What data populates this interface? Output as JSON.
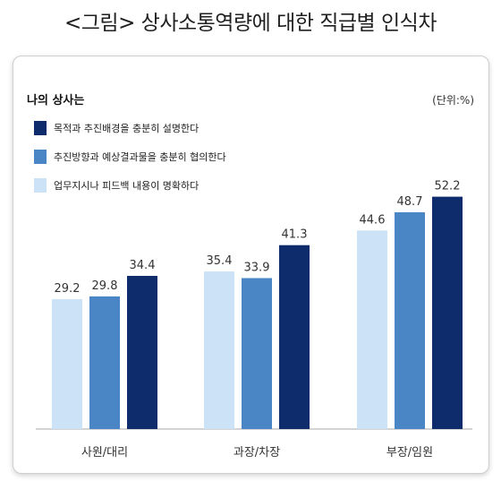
{
  "figure_title": "<그림> 상사소통역량에 대한 직급별 인식차",
  "chart_data": {
    "type": "bar",
    "title": "나의 상사는",
    "unit": "(단위:%)",
    "categories": [
      "사원/대리",
      "과장/차장",
      "부장/임원"
    ],
    "series": [
      {
        "name": "업무지시나 피드백 내용이 명확하다",
        "color": "#cce2f6",
        "values": [
          29.2,
          35.4,
          44.6
        ]
      },
      {
        "name": "추진방향과 예상결과물을 충분히 협의한다",
        "color": "#4a86c5",
        "values": [
          29.8,
          33.9,
          48.7
        ]
      },
      {
        "name": "목적과 추진배경을 충분히 설명한다",
        "color": "#0e2b6b",
        "values": [
          34.4,
          41.3,
          52.2
        ]
      }
    ],
    "legend_order": [
      2,
      1,
      0
    ],
    "ylim": [
      0,
      60
    ],
    "grid": false,
    "legend_position": "top-left"
  }
}
